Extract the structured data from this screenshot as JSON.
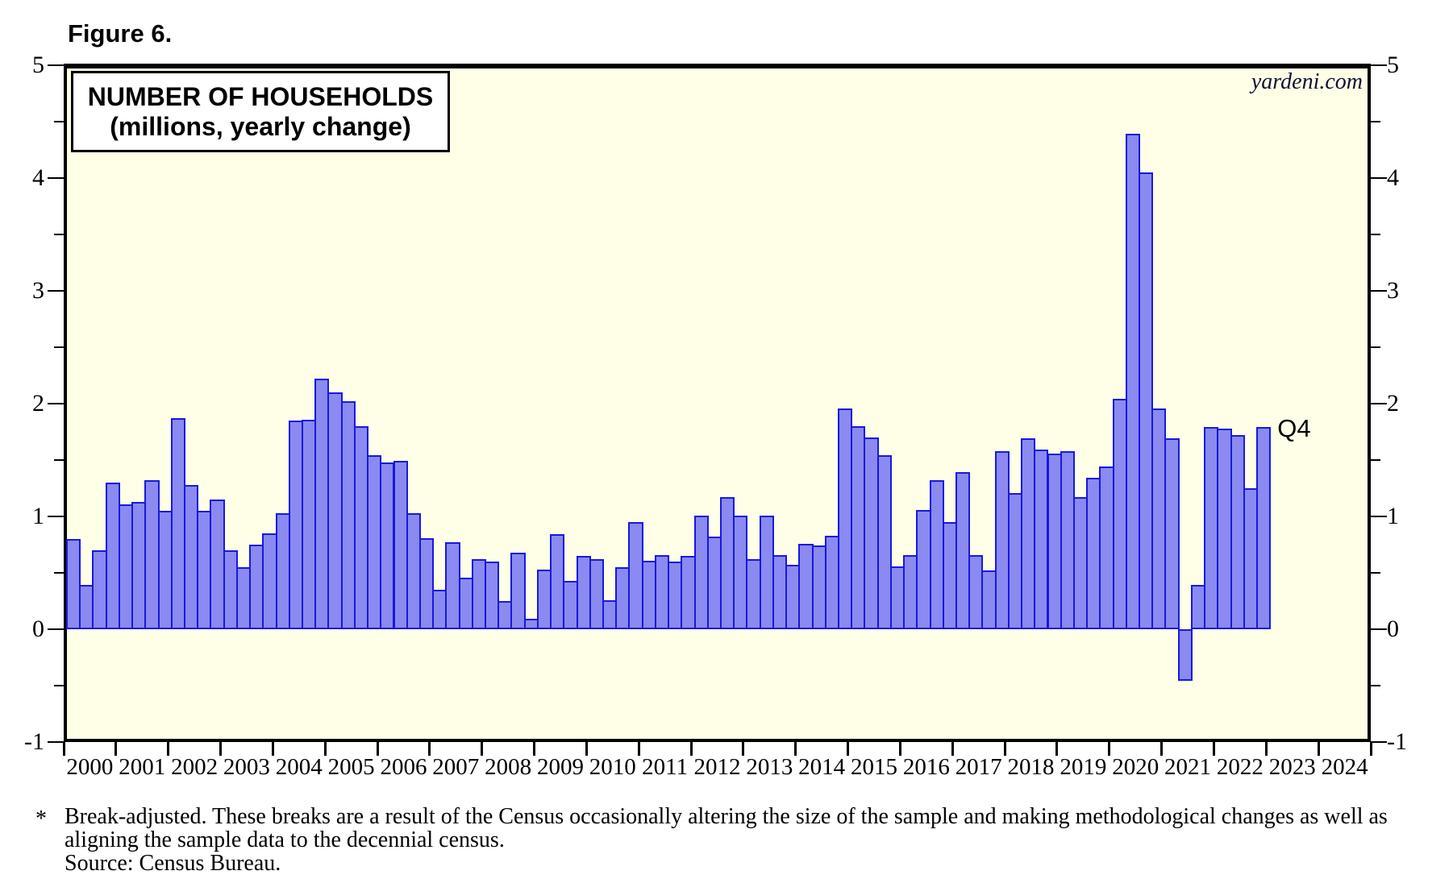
{
  "figure_label": "Figure 6.",
  "watermark": "yardeni.com",
  "chart_data": {
    "type": "bar",
    "title": "NUMBER OF HOUSEHOLDS",
    "subtitle": "(millions, yearly change)",
    "ylim": [
      -1,
      5
    ],
    "y_major_ticks": [
      5,
      4,
      3,
      2,
      1,
      0,
      -1
    ],
    "y_minor_step": 0.5,
    "grid": "off",
    "legend": "none",
    "x_tick_labels": [
      "2000",
      "2001",
      "2002",
      "2003",
      "2004",
      "2005",
      "2006",
      "2007",
      "2008",
      "2009",
      "2010",
      "2011",
      "2012",
      "2013",
      "2014",
      "2015",
      "2016",
      "2017",
      "2018",
      "2019",
      "2020",
      "2021",
      "2022",
      "2023",
      "2024"
    ],
    "last_point_label": "Q4",
    "series": [
      {
        "name": "Number of households, yearly change (millions)",
        "frequency": "quarterly",
        "start": "2000Q1",
        "end": "2022Q4",
        "values": [
          0.8,
          0.39,
          0.7,
          1.3,
          1.11,
          1.13,
          1.32,
          1.05,
          1.87,
          1.28,
          1.05,
          1.15,
          0.7,
          0.55,
          0.75,
          0.85,
          1.03,
          1.85,
          1.86,
          2.22,
          2.1,
          2.02,
          1.8,
          1.54,
          1.48,
          1.49,
          1.03,
          0.81,
          0.35,
          0.77,
          0.46,
          0.62,
          0.6,
          0.25,
          0.68,
          0.09,
          0.53,
          0.84,
          0.43,
          0.65,
          0.62,
          0.26,
          0.55,
          0.95,
          0.61,
          0.66,
          0.6,
          0.65,
          1.01,
          0.82,
          1.17,
          1.01,
          0.62,
          1.01,
          0.66,
          0.57,
          0.76,
          0.74,
          0.83,
          1.96,
          1.8,
          1.7,
          1.54,
          0.56,
          0.66,
          1.06,
          1.32,
          0.95,
          1.39,
          0.66,
          0.52,
          1.58,
          1.21,
          1.69,
          1.59,
          1.56,
          1.58,
          1.17,
          1.34,
          1.44,
          2.04,
          4.39,
          4.05,
          1.96,
          1.69,
          -0.46,
          0.39,
          1.79,
          1.78,
          1.72,
          1.25,
          1.79
        ]
      }
    ],
    "colors": {
      "bar_fill": "#8A8AF0",
      "bar_border": "#1818E0",
      "plot_background": "#FFFFE8",
      "frame": "#000000",
      "watermark_text": "#111133"
    }
  },
  "footnote": {
    "marker": "*",
    "line1": "Break-adjusted. These breaks are a result of the Census occasionally altering the size of the sample and making methodological changes as well as",
    "line2": "aligning the sample data to the decennial census.",
    "line3": "Source: Census Bureau."
  }
}
